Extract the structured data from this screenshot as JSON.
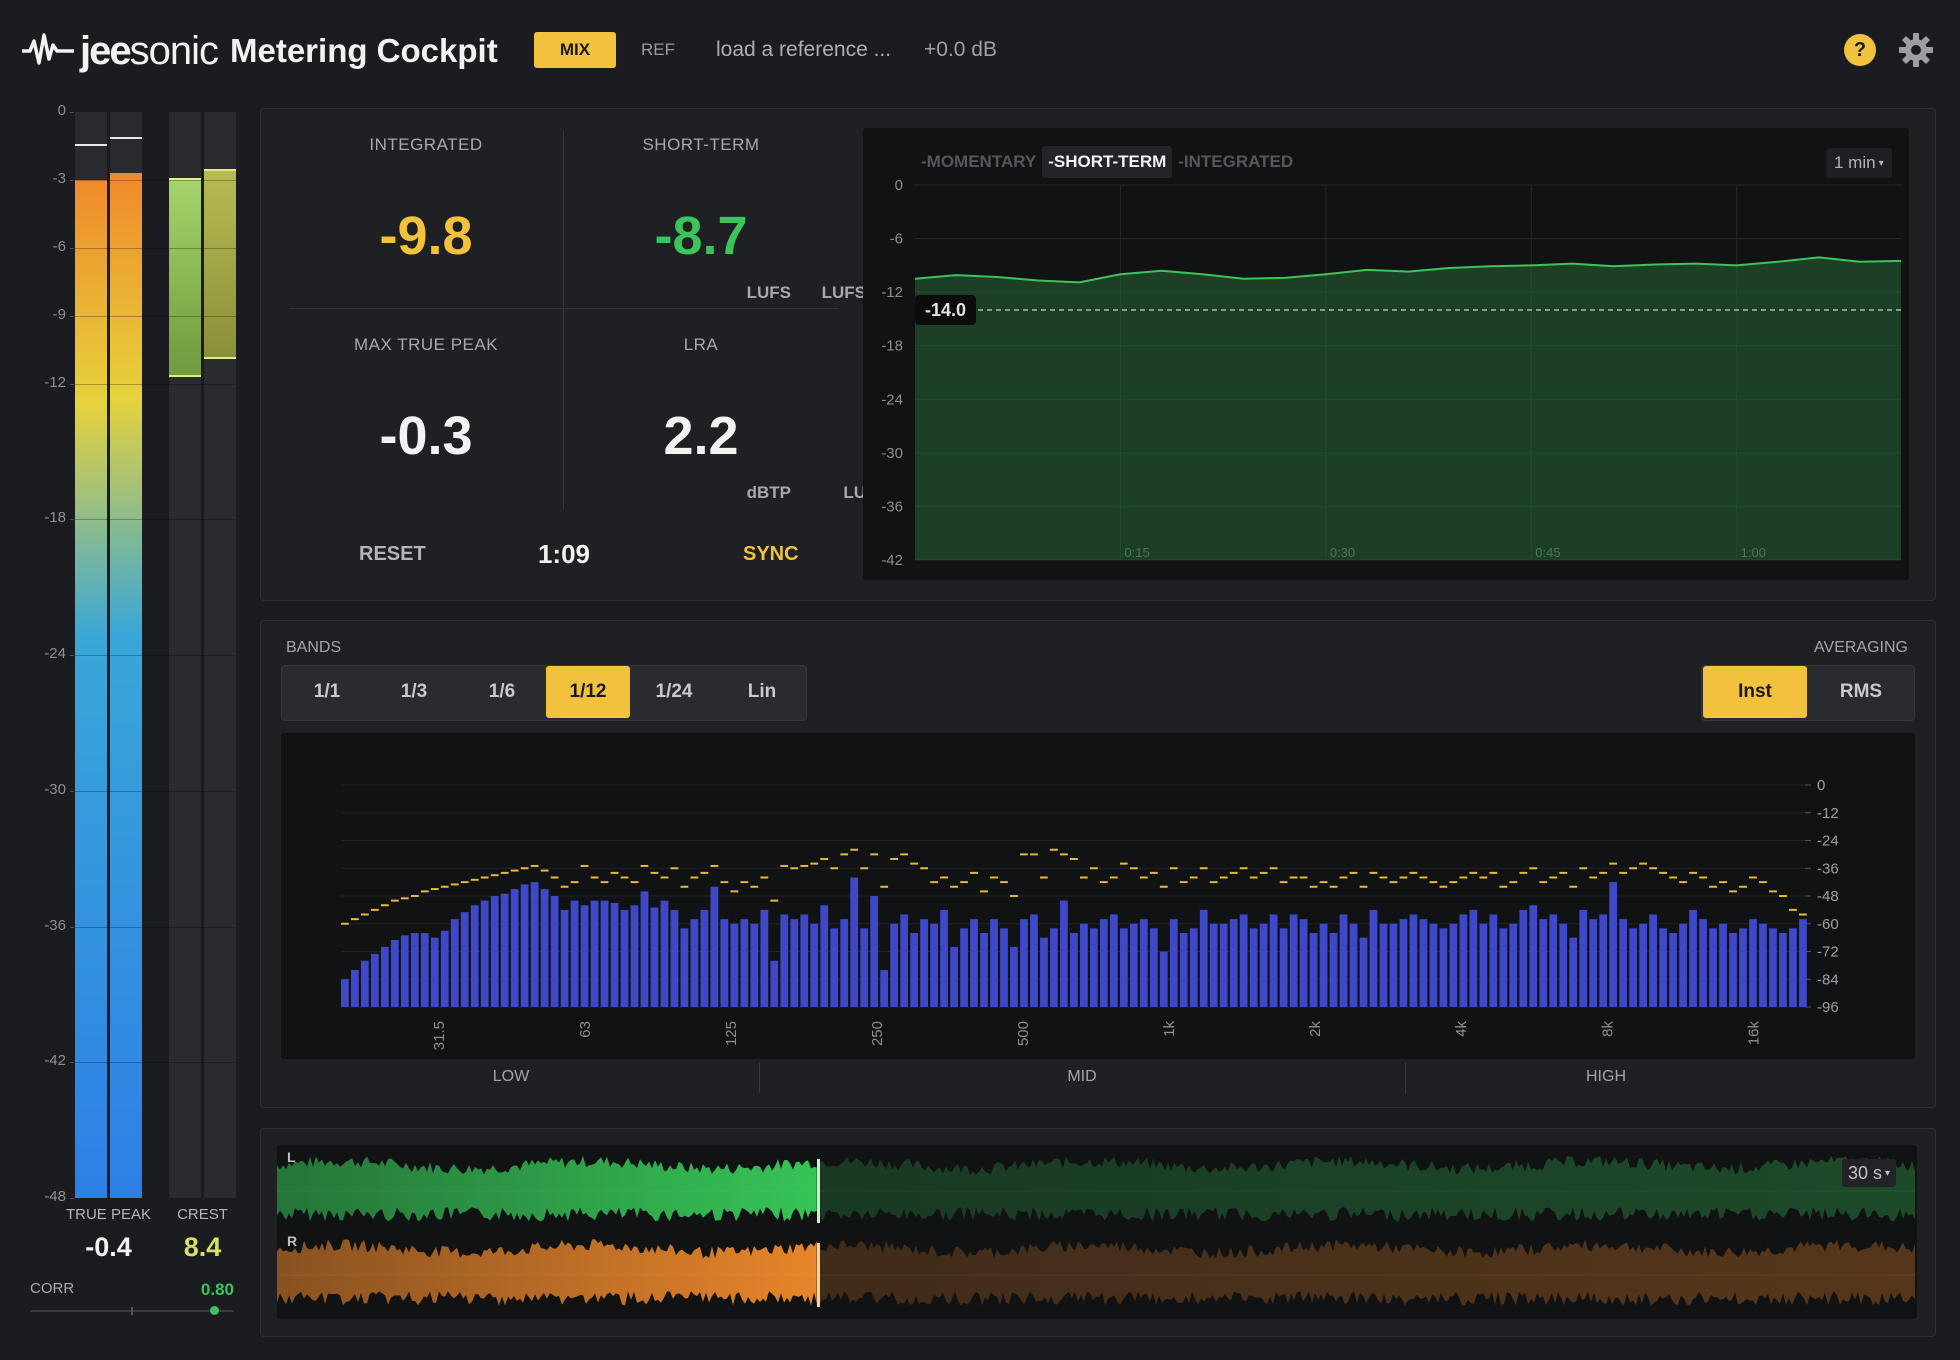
{
  "header": {
    "brand_part1": "jee",
    "brand_part2": "sonic",
    "title": "Metering Cockpit",
    "mode_mix_label": "MIX",
    "mode_ref_label": "REF",
    "reference_placeholder": "load a reference ...",
    "reference_gain": "+0.0 dB",
    "help_label": "?",
    "accent_color": "#f2c23e"
  },
  "level_meters": {
    "scale_ticks": [
      "0",
      "-3",
      "-6",
      "-9",
      "-12",
      "-18",
      "-24",
      "-30",
      "-36",
      "-42",
      "-48"
    ],
    "true_peak_label": "TRUE PEAK",
    "true_peak_value": "-0.4",
    "crest_label": "CREST",
    "crest_value": "8.4",
    "correlation_label": "CORR",
    "correlation_value": "0.80",
    "left_level_db": -3.0,
    "right_level_db": -2.7,
    "left_peak_db": -1.4,
    "right_peak_db": -1.1,
    "crest_left_top_db": -2.9,
    "crest_left_bottom_db": -11.7,
    "crest_right_top_db": -2.5,
    "crest_right_bottom_db": -10.9,
    "correlation": 0.8
  },
  "loudness": {
    "integrated_label": "INTEGRATED",
    "integrated_value": "-9.8",
    "integrated_unit": "LUFS",
    "shortterm_label": "SHORT-TERM",
    "shortterm_value": "-8.7",
    "shortterm_unit": "LUFS",
    "truepeak_label": "MAX TRUE PEAK",
    "truepeak_value": "-0.3",
    "truepeak_unit": "dBTP",
    "lra_label": "LRA",
    "lra_value": "2.2",
    "lra_unit": "LU",
    "reset_label": "RESET",
    "time_value": "1:09",
    "sync_label": "SYNC",
    "colors": {
      "integrated": "#f2c23e",
      "shortterm": "#3cc35a"
    }
  },
  "history": {
    "tabs": [
      "-MOMENTARY",
      "-SHORT-TERM",
      "-INTEGRATED"
    ],
    "active_tab": 1,
    "range_label": "1 min",
    "target_label": "-14.0",
    "chart_data": {
      "type": "line",
      "x_unit": "seconds",
      "xlim": [
        0,
        72
      ],
      "ylim": [
        -42,
        0
      ],
      "y_ticks": [
        "0",
        "-6",
        "-12",
        "-18",
        "-24",
        "-30",
        "-36",
        "-42"
      ],
      "x_ticks": [
        "0:15",
        "0:30",
        "0:45",
        "1:00"
      ],
      "target": -14.0,
      "x": [
        0,
        3,
        6,
        9,
        12,
        15,
        18,
        21,
        24,
        27,
        30,
        33,
        36,
        39,
        42,
        45,
        48,
        51,
        54,
        57,
        60,
        63,
        66,
        69,
        72
      ],
      "y": [
        -10.5,
        -10.1,
        -10.3,
        -10.7,
        -10.9,
        -10.0,
        -9.6,
        -10.0,
        -10.5,
        -10.4,
        -10.0,
        -9.5,
        -9.7,
        -9.3,
        -9.1,
        -9.0,
        -8.8,
        -9.1,
        -8.9,
        -8.8,
        -9.0,
        -8.6,
        -8.1,
        -8.6,
        -8.5
      ]
    }
  },
  "spectrum": {
    "bands_label": "BANDS",
    "band_options": [
      "1/1",
      "1/3",
      "1/6",
      "1/12",
      "1/24",
      "Lin"
    ],
    "active_band": 3,
    "averaging_label": "AVERAGING",
    "averaging_options": [
      "Inst",
      "RMS"
    ],
    "active_averaging": 0,
    "region_labels": [
      "LOW",
      "MID",
      "HIGH"
    ],
    "bar_color": "#3e48c9",
    "peak_color": "#e8b83a",
    "chart_data": {
      "type": "bar",
      "ylim": [
        -96,
        0
      ],
      "y_ticks": [
        "0",
        "-12",
        "-24",
        "-36",
        "-48",
        "-60",
        "-72",
        "-84",
        "-96"
      ],
      "x_ticks": [
        "31.5",
        "63",
        "125",
        "250",
        "500",
        "1k",
        "2k",
        "4k",
        "8k",
        "16k"
      ],
      "values": [
        -84,
        -80,
        -76,
        -73,
        -70,
        -67,
        -65,
        -64,
        -64,
        -66,
        -63,
        -58,
        -55,
        -52,
        -50,
        -48,
        -47,
        -45,
        -43,
        -42,
        -45,
        -48,
        -54,
        -50,
        -52,
        -50,
        -50,
        -51,
        -54,
        -52,
        -46,
        -53,
        -50,
        -54,
        -62,
        -58,
        -54,
        -44,
        -58,
        -60,
        -58,
        -60,
        -54,
        -76,
        -56,
        -58,
        -56,
        -60,
        -52,
        -62,
        -58,
        -40,
        -62,
        -48,
        -80,
        -60,
        -56,
        -64,
        -58,
        -60,
        -54,
        -70,
        -62,
        -58,
        -64,
        -58,
        -62,
        -70,
        -58,
        -56,
        -66,
        -62,
        -50,
        -64,
        -60,
        -62,
        -58,
        -56,
        -62,
        -60,
        -58,
        -62,
        -72,
        -58,
        -64,
        -62,
        -54,
        -60,
        -60,
        -58,
        -56,
        -62,
        -60,
        -56,
        -62,
        -56,
        -58,
        -64,
        -60,
        -64,
        -56,
        -60,
        -66,
        -54,
        -60,
        -60,
        -58,
        -56,
        -58,
        -60,
        -62,
        -60,
        -56,
        -54,
        -60,
        -56,
        -62,
        -60,
        -54,
        -52,
        -58,
        -56,
        -60,
        -66,
        -54,
        -58,
        -56,
        -42,
        -58,
        -62,
        -60,
        -56,
        -62,
        -64,
        -60,
        -54,
        -58,
        -62,
        -60,
        -64,
        -62,
        -58,
        -60,
        -62,
        -64,
        -62,
        -58
      ],
      "peaks": [
        -60,
        -58,
        -56,
        -54,
        -52,
        -50,
        -49,
        -48,
        -46,
        -45,
        -44,
        -43,
        -42,
        -41,
        -40,
        -39,
        -38,
        -37,
        -36,
        -35,
        -37,
        -40,
        -44,
        -42,
        -35,
        -40,
        -42,
        -38,
        -40,
        -42,
        -35,
        -38,
        -40,
        -36,
        -44,
        -40,
        -38,
        -35,
        -42,
        -46,
        -42,
        -44,
        -40,
        -50,
        -35,
        -36,
        -35,
        -34,
        -32,
        -36,
        -30,
        -28,
        -36,
        -30,
        -44,
        -32,
        -30,
        -34,
        -36,
        -42,
        -40,
        -44,
        -42,
        -38,
        -46,
        -40,
        -42,
        -48,
        -30,
        -30,
        -40,
        -28,
        -30,
        -32,
        -40,
        -36,
        -42,
        -40,
        -34,
        -36,
        -40,
        -38,
        -44,
        -36,
        -42,
        -40,
        -36,
        -42,
        -40,
        -38,
        -36,
        -40,
        -38,
        -36,
        -42,
        -40,
        -40,
        -44,
        -42,
        -44,
        -40,
        -38,
        -44,
        -38,
        -40,
        -42,
        -40,
        -38,
        -40,
        -42,
        -44,
        -42,
        -40,
        -38,
        -40,
        -38,
        -44,
        -42,
        -38,
        -36,
        -42,
        -40,
        -38,
        -44,
        -36,
        -40,
        -38,
        -34,
        -38,
        -36,
        -34,
        -36,
        -38,
        -40,
        -42,
        -38,
        -40,
        -44,
        -42,
        -46,
        -44,
        -40,
        -42,
        -46,
        -48,
        -54,
        -56
      ]
    }
  },
  "waveform": {
    "channel_left": "L",
    "channel_right": "R",
    "range_label": "30 s",
    "playhead_fraction": 0.33,
    "left_color": "#36c457",
    "right_color": "#e8852b"
  }
}
